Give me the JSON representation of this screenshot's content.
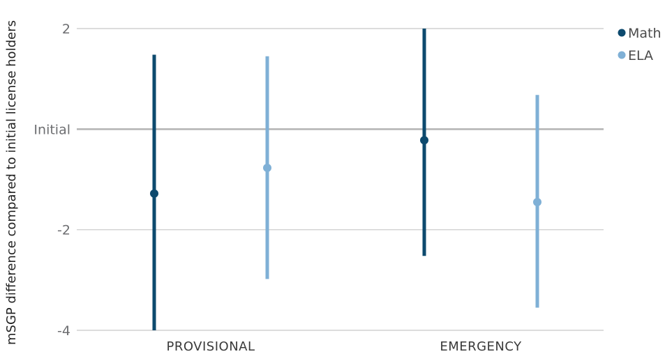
{
  "chart_data": {
    "type": "errorbar",
    "title": "",
    "xlabel": "",
    "ylabel": "mSGP difference compared to initial license holders",
    "categories": [
      "PROVISIONAL",
      "EMERGENCY"
    ],
    "y_ticks": [
      {
        "value": 2,
        "label": "2"
      },
      {
        "value": 0,
        "label": "Initial"
      },
      {
        "value": -2,
        "label": "-2"
      },
      {
        "value": -4,
        "label": "-4"
      }
    ],
    "ylim": [
      -4,
      2
    ],
    "grid": true,
    "legend_position": "top-right",
    "series": [
      {
        "name": "Math",
        "color": "#0d4a6e",
        "points": [
          {
            "category": "PROVISIONAL",
            "estimate": -1.28,
            "lower": -4.0,
            "upper": 1.48
          },
          {
            "category": "EMERGENCY",
            "estimate": -0.22,
            "lower": -2.52,
            "upper": 2.0
          }
        ]
      },
      {
        "name": "ELA",
        "color": "#7fb0d6",
        "points": [
          {
            "category": "PROVISIONAL",
            "estimate": -0.77,
            "lower": -2.98,
            "upper": 1.45
          },
          {
            "category": "EMERGENCY",
            "estimate": -1.45,
            "lower": -3.55,
            "upper": 0.68
          }
        ]
      }
    ]
  }
}
